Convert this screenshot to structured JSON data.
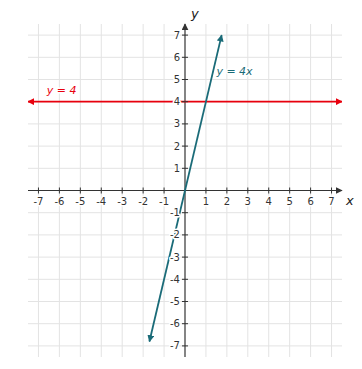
{
  "chart_data": {
    "type": "line",
    "x_label": "x",
    "y_label": "y",
    "xlim": [
      -7.5,
      7.5
    ],
    "ylim": [
      -7.5,
      7.5
    ],
    "xticks": [
      -7,
      -6,
      -5,
      -4,
      -3,
      -2,
      -1,
      1,
      2,
      3,
      4,
      5,
      6,
      7
    ],
    "yticks": [
      -7,
      -6,
      -5,
      -4,
      -3,
      -2,
      -1,
      1,
      2,
      3,
      4,
      5,
      6,
      7
    ],
    "grid": true,
    "series": [
      {
        "color": "#e8000d",
        "x": [
          -7.5,
          7.5
        ],
        "values": [
          4,
          4
        ]
      },
      {
        "color": "#1a6b78",
        "x": [
          -1.7,
          1.75
        ],
        "values": [
          -6.8,
          7.0
        ]
      }
    ],
    "annotations": [
      {
        "text": "y = 4",
        "x": -6.6,
        "y": 4.25,
        "color": "#e8000d"
      },
      {
        "text": "y = 4x",
        "x": 1.5,
        "y": 5.1,
        "color": "#1a6b78"
      }
    ]
  }
}
